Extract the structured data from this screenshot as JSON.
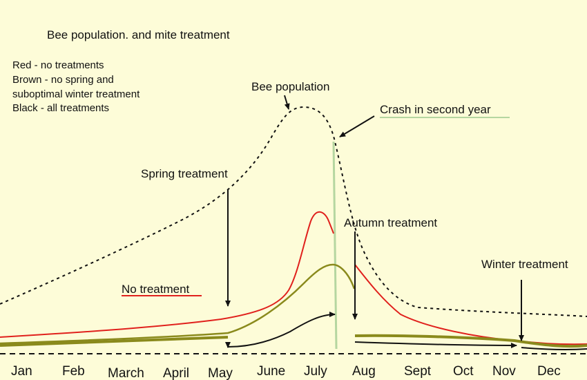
{
  "title": "Bee population. and mite treatment",
  "legend": [
    "Red - no treatments",
    "Brown - no spring and",
    "suboptimal winter treatment",
    "Black - all treatments"
  ],
  "annotations": {
    "bee_population": "Bee population",
    "crash": "Crash in second year",
    "spring_treatment": "Spring treatment",
    "autumn_treatment": "Autumn treatment",
    "winter_treatment": "Winter treatment",
    "no_treatment": "No treatment"
  },
  "months": [
    "Jan",
    "Feb",
    "March",
    "April",
    "May",
    "June",
    "July",
    "Aug",
    "Sept",
    "Oct",
    "Nov",
    "Dec"
  ],
  "colors": {
    "background": "#fdfcd8",
    "red": "#e0201c",
    "brown": "#8a8a1c",
    "black": "#111111",
    "crash_line": "#b5d6a0"
  }
}
